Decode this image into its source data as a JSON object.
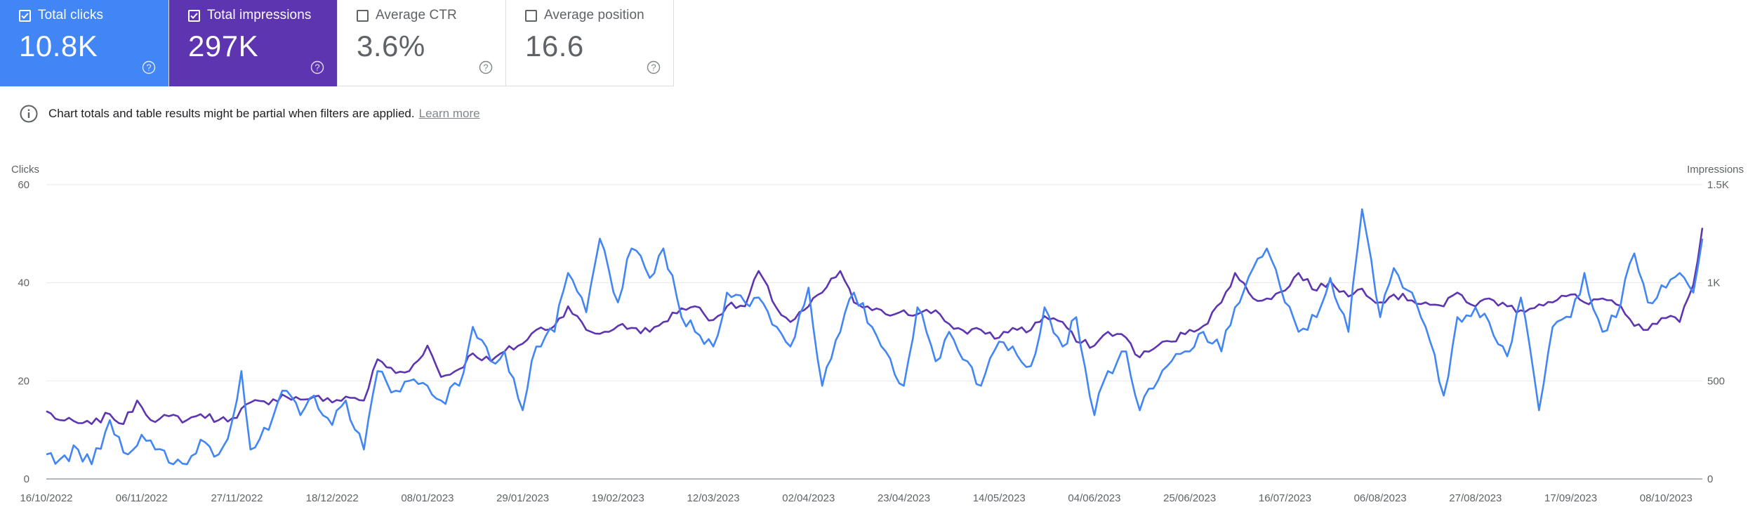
{
  "cards": [
    {
      "key": "clicks",
      "label": "Total clicks",
      "value": "10.8K",
      "checked": true,
      "color": "#4285f4"
    },
    {
      "key": "impressions",
      "label": "Total impressions",
      "value": "297K",
      "checked": true,
      "color": "#5e35b1"
    },
    {
      "key": "ctr",
      "label": "Average CTR",
      "value": "3.6%",
      "checked": false,
      "color": "#ffffff"
    },
    {
      "key": "position",
      "label": "Average position",
      "value": "16.6",
      "checked": false,
      "color": "#ffffff"
    }
  ],
  "notice": {
    "text": "Chart totals and table results might be partial when filters are applied.",
    "link": "Learn more"
  },
  "chart_data": {
    "type": "line",
    "ylabel": "Clicks",
    "y2label": "Impressions",
    "ylim": [
      0,
      60
    ],
    "y2lim": [
      0,
      1500
    ],
    "yticks": [
      0,
      20,
      40,
      60
    ],
    "y2ticks": [
      "0",
      "500",
      "1K",
      "1.5K"
    ],
    "xticks": [
      "16/10/2022",
      "06/11/2022",
      "27/11/2022",
      "18/12/2022",
      "08/01/2023",
      "29/01/2023",
      "19/02/2023",
      "12/03/2023",
      "02/04/2023",
      "23/04/2023",
      "14/05/2023",
      "04/06/2023",
      "25/06/2023",
      "16/07/2023",
      "06/08/2023",
      "27/08/2023",
      "17/09/2023",
      "08/10/2023"
    ],
    "start_date": "2022-10-16",
    "days": 365,
    "grid": true,
    "series": [
      {
        "name": "Clicks",
        "axis": "left",
        "color": "#4285f4",
        "anchors": [
          [
            0,
            5
          ],
          [
            3,
            4
          ],
          [
            7,
            6
          ],
          [
            10,
            3
          ],
          [
            14,
            12
          ],
          [
            18,
            5
          ],
          [
            21,
            9
          ],
          [
            24,
            6
          ],
          [
            28,
            3
          ],
          [
            31,
            3
          ],
          [
            34,
            8
          ],
          [
            38,
            5
          ],
          [
            41,
            12
          ],
          [
            43,
            22
          ],
          [
            45,
            6
          ],
          [
            49,
            10
          ],
          [
            52,
            18
          ],
          [
            56,
            13
          ],
          [
            59,
            17
          ],
          [
            63,
            11
          ],
          [
            66,
            16
          ],
          [
            70,
            6
          ],
          [
            73,
            22
          ],
          [
            77,
            18
          ],
          [
            80,
            20
          ],
          [
            84,
            19
          ],
          [
            87,
            16
          ],
          [
            91,
            19
          ],
          [
            94,
            31
          ],
          [
            98,
            24
          ],
          [
            101,
            26
          ],
          [
            105,
            14
          ],
          [
            108,
            27
          ],
          [
            112,
            30
          ],
          [
            115,
            42
          ],
          [
            119,
            34
          ],
          [
            122,
            49
          ],
          [
            126,
            36
          ],
          [
            129,
            47
          ],
          [
            133,
            41
          ],
          [
            136,
            47
          ],
          [
            140,
            33
          ],
          [
            143,
            30
          ],
          [
            147,
            27
          ],
          [
            150,
            38
          ],
          [
            154,
            36
          ],
          [
            157,
            37
          ],
          [
            161,
            31
          ],
          [
            164,
            27
          ],
          [
            168,
            39
          ],
          [
            171,
            19
          ],
          [
            175,
            30
          ],
          [
            178,
            38
          ],
          [
            182,
            31
          ],
          [
            185,
            26
          ],
          [
            189,
            19
          ],
          [
            192,
            35
          ],
          [
            196,
            24
          ],
          [
            199,
            30
          ],
          [
            203,
            24
          ],
          [
            206,
            19
          ],
          [
            210,
            28
          ],
          [
            213,
            27
          ],
          [
            217,
            23
          ],
          [
            220,
            35
          ],
          [
            224,
            27
          ],
          [
            227,
            33
          ],
          [
            231,
            13
          ],
          [
            234,
            22
          ],
          [
            238,
            26
          ],
          [
            241,
            14
          ],
          [
            245,
            20
          ],
          [
            248,
            24
          ],
          [
            252,
            26
          ],
          [
            255,
            30
          ],
          [
            259,
            26
          ],
          [
            262,
            35
          ],
          [
            266,
            43
          ],
          [
            269,
            47
          ],
          [
            273,
            36
          ],
          [
            276,
            30
          ],
          [
            280,
            33
          ],
          [
            283,
            41
          ],
          [
            287,
            30
          ],
          [
            290,
            55
          ],
          [
            294,
            33
          ],
          [
            297,
            43
          ],
          [
            301,
            38
          ],
          [
            304,
            31
          ],
          [
            308,
            17
          ],
          [
            311,
            33
          ],
          [
            315,
            35
          ],
          [
            318,
            32
          ],
          [
            322,
            25
          ],
          [
            325,
            37
          ],
          [
            329,
            14
          ],
          [
            332,
            31
          ],
          [
            336,
            33
          ],
          [
            339,
            42
          ],
          [
            343,
            30
          ],
          [
            346,
            33
          ],
          [
            350,
            46
          ],
          [
            353,
            36
          ],
          [
            357,
            39
          ],
          [
            360,
            42
          ],
          [
            363,
            38
          ],
          [
            365,
            49
          ]
        ]
      },
      {
        "name": "Impressions",
        "axis": "right",
        "color": "#5e35b1",
        "anchors": [
          [
            0,
            345
          ],
          [
            3,
            300
          ],
          [
            7,
            285
          ],
          [
            10,
            280
          ],
          [
            14,
            330
          ],
          [
            17,
            280
          ],
          [
            20,
            400
          ],
          [
            24,
            290
          ],
          [
            27,
            320
          ],
          [
            31,
            300
          ],
          [
            34,
            330
          ],
          [
            38,
            300
          ],
          [
            41,
            310
          ],
          [
            45,
            390
          ],
          [
            49,
            380
          ],
          [
            52,
            430
          ],
          [
            56,
            405
          ],
          [
            59,
            420
          ],
          [
            63,
            390
          ],
          [
            66,
            420
          ],
          [
            70,
            400
          ],
          [
            73,
            610
          ],
          [
            77,
            540
          ],
          [
            80,
            550
          ],
          [
            84,
            680
          ],
          [
            87,
            520
          ],
          [
            91,
            560
          ],
          [
            94,
            640
          ],
          [
            98,
            600
          ],
          [
            101,
            650
          ],
          [
            105,
            690
          ],
          [
            108,
            760
          ],
          [
            112,
            780
          ],
          [
            115,
            880
          ],
          [
            119,
            760
          ],
          [
            122,
            740
          ],
          [
            126,
            780
          ],
          [
            129,
            770
          ],
          [
            133,
            750
          ],
          [
            136,
            800
          ],
          [
            140,
            870
          ],
          [
            143,
            880
          ],
          [
            147,
            810
          ],
          [
            150,
            880
          ],
          [
            154,
            880
          ],
          [
            157,
            1060
          ],
          [
            161,
            870
          ],
          [
            164,
            800
          ],
          [
            168,
            880
          ],
          [
            171,
            950
          ],
          [
            175,
            1060
          ],
          [
            178,
            900
          ],
          [
            182,
            860
          ],
          [
            185,
            840
          ],
          [
            189,
            860
          ],
          [
            192,
            840
          ],
          [
            196,
            860
          ],
          [
            199,
            790
          ],
          [
            203,
            740
          ],
          [
            206,
            760
          ],
          [
            210,
            720
          ],
          [
            213,
            770
          ],
          [
            217,
            760
          ],
          [
            220,
            830
          ],
          [
            224,
            800
          ],
          [
            227,
            700
          ],
          [
            231,
            680
          ],
          [
            234,
            750
          ],
          [
            238,
            720
          ],
          [
            241,
            620
          ],
          [
            245,
            680
          ],
          [
            248,
            700
          ],
          [
            252,
            760
          ],
          [
            255,
            780
          ],
          [
            259,
            900
          ],
          [
            262,
            1050
          ],
          [
            266,
            920
          ],
          [
            269,
            920
          ],
          [
            273,
            960
          ],
          [
            276,
            1050
          ],
          [
            280,
            960
          ],
          [
            283,
            1010
          ],
          [
            287,
            930
          ],
          [
            290,
            970
          ],
          [
            294,
            900
          ],
          [
            297,
            940
          ],
          [
            301,
            910
          ],
          [
            304,
            900
          ],
          [
            308,
            880
          ],
          [
            311,
            950
          ],
          [
            315,
            880
          ],
          [
            318,
            920
          ],
          [
            322,
            880
          ],
          [
            325,
            860
          ],
          [
            329,
            890
          ],
          [
            332,
            900
          ],
          [
            336,
            940
          ],
          [
            339,
            900
          ],
          [
            343,
            920
          ],
          [
            346,
            890
          ],
          [
            350,
            780
          ],
          [
            353,
            760
          ],
          [
            357,
            820
          ],
          [
            360,
            800
          ],
          [
            363,
            990
          ],
          [
            365,
            1280
          ]
        ]
      }
    ]
  }
}
